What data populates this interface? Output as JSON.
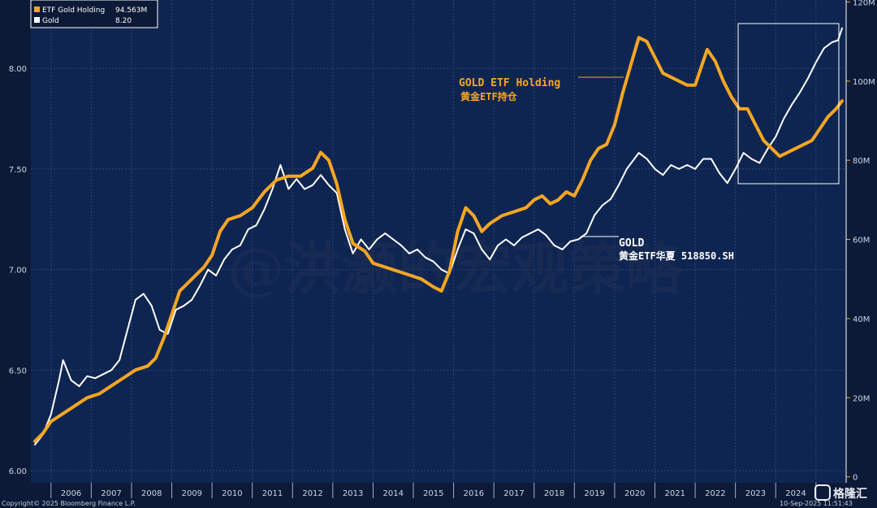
{
  "legend": {
    "items": [
      {
        "label": "ETF Gold Holding",
        "value": "94.563M",
        "color": "#f5a623"
      },
      {
        "label": "Gold",
        "value": "8.20",
        "color": "#ffffff"
      }
    ]
  },
  "annotations": {
    "etf_en": "GOLD ETF Holding",
    "etf_cn": "黄金ETF持仓",
    "gold_en": "GOLD",
    "gold_cn": "黄金ETF华夏 518850.SH"
  },
  "watermark": "@洪灏的宏观策略",
  "footer": {
    "copyright": "Copyright© 2025 Bloomberg Finance L.P.",
    "date": "10-Sep-2025 11:51:43"
  },
  "brand": {
    "name": "格隆汇"
  },
  "chart_data": {
    "type": "line",
    "x_unit": "year",
    "x_ticks": [
      "2006",
      "2007",
      "2008",
      "2009",
      "2010",
      "2011",
      "2012",
      "2013",
      "2014",
      "2015",
      "2016",
      "2017",
      "2018",
      "2019",
      "2020",
      "2021",
      "2022",
      "2023",
      "2024"
    ],
    "xlim": [
      2005.5,
      2025.75
    ],
    "left_axis": {
      "ticks": [
        "6.00",
        "6.50",
        "7.00",
        "7.50",
        "8.00"
      ],
      "ylim": [
        5.94,
        8.34
      ],
      "series": "Gold"
    },
    "right_axis": {
      "ticks": [
        "0",
        "20M",
        "40M",
        "60M",
        "80M",
        "100M",
        "120M"
      ],
      "ylim": [
        -1.5,
        120.5
      ],
      "series": "ETF Gold Holding"
    },
    "series": [
      {
        "name": "ETF Gold Holding",
        "axis": "right",
        "color": "#f5a623",
        "points": [
          [
            2005.6,
            9
          ],
          [
            2005.8,
            11
          ],
          [
            2006.0,
            14
          ],
          [
            2006.3,
            16
          ],
          [
            2006.6,
            18
          ],
          [
            2006.9,
            20
          ],
          [
            2007.2,
            21
          ],
          [
            2007.5,
            23
          ],
          [
            2007.8,
            25
          ],
          [
            2008.1,
            27
          ],
          [
            2008.4,
            28
          ],
          [
            2008.6,
            30
          ],
          [
            2008.8,
            35
          ],
          [
            2009.0,
            41
          ],
          [
            2009.2,
            47
          ],
          [
            2009.5,
            50
          ],
          [
            2009.8,
            53
          ],
          [
            2010.0,
            56
          ],
          [
            2010.2,
            62
          ],
          [
            2010.4,
            65
          ],
          [
            2010.7,
            66
          ],
          [
            2011.0,
            68
          ],
          [
            2011.3,
            72
          ],
          [
            2011.6,
            75
          ],
          [
            2011.9,
            76
          ],
          [
            2012.2,
            76
          ],
          [
            2012.5,
            78
          ],
          [
            2012.7,
            82
          ],
          [
            2012.9,
            80
          ],
          [
            2013.1,
            74
          ],
          [
            2013.3,
            65
          ],
          [
            2013.5,
            59
          ],
          [
            2013.8,
            57
          ],
          [
            2014.0,
            54
          ],
          [
            2014.3,
            53
          ],
          [
            2014.6,
            52
          ],
          [
            2014.9,
            51
          ],
          [
            2015.2,
            50
          ],
          [
            2015.5,
            48
          ],
          [
            2015.7,
            47
          ],
          [
            2015.9,
            52
          ],
          [
            2016.1,
            62
          ],
          [
            2016.3,
            68
          ],
          [
            2016.5,
            66
          ],
          [
            2016.7,
            62
          ],
          [
            2016.9,
            64
          ],
          [
            2017.2,
            66
          ],
          [
            2017.5,
            67
          ],
          [
            2017.8,
            68
          ],
          [
            2018.0,
            70
          ],
          [
            2018.2,
            71
          ],
          [
            2018.4,
            69
          ],
          [
            2018.6,
            70
          ],
          [
            2018.8,
            72
          ],
          [
            2019.0,
            71
          ],
          [
            2019.2,
            75
          ],
          [
            2019.4,
            80
          ],
          [
            2019.6,
            83
          ],
          [
            2019.8,
            84
          ],
          [
            2020.0,
            89
          ],
          [
            2020.2,
            97
          ],
          [
            2020.4,
            104
          ],
          [
            2020.6,
            111
          ],
          [
            2020.8,
            110
          ],
          [
            2021.0,
            106
          ],
          [
            2021.2,
            102
          ],
          [
            2021.4,
            101
          ],
          [
            2021.6,
            100
          ],
          [
            2021.8,
            99
          ],
          [
            2022.0,
            99
          ],
          [
            2022.1,
            102
          ],
          [
            2022.3,
            108
          ],
          [
            2022.5,
            105
          ],
          [
            2022.7,
            100
          ],
          [
            2022.9,
            96
          ],
          [
            2023.1,
            93
          ],
          [
            2023.3,
            93
          ],
          [
            2023.5,
            89
          ],
          [
            2023.7,
            85
          ],
          [
            2023.9,
            83
          ],
          [
            2024.1,
            81
          ],
          [
            2024.3,
            82
          ],
          [
            2024.5,
            83
          ],
          [
            2024.7,
            84
          ],
          [
            2024.9,
            85
          ],
          [
            2025.1,
            88
          ],
          [
            2025.3,
            91
          ],
          [
            2025.5,
            93
          ],
          [
            2025.65,
            95
          ]
        ]
      },
      {
        "name": "Gold",
        "axis": "left",
        "color": "#ffffff",
        "points": [
          [
            2005.6,
            6.13
          ],
          [
            2005.8,
            6.18
          ],
          [
            2006.0,
            6.28
          ],
          [
            2006.2,
            6.45
          ],
          [
            2006.3,
            6.55
          ],
          [
            2006.5,
            6.45
          ],
          [
            2006.7,
            6.42
          ],
          [
            2006.9,
            6.47
          ],
          [
            2007.1,
            6.46
          ],
          [
            2007.3,
            6.48
          ],
          [
            2007.5,
            6.5
          ],
          [
            2007.7,
            6.55
          ],
          [
            2007.9,
            6.7
          ],
          [
            2008.1,
            6.85
          ],
          [
            2008.3,
            6.88
          ],
          [
            2008.5,
            6.82
          ],
          [
            2008.7,
            6.7
          ],
          [
            2008.9,
            6.68
          ],
          [
            2009.1,
            6.8
          ],
          [
            2009.3,
            6.82
          ],
          [
            2009.5,
            6.85
          ],
          [
            2009.7,
            6.92
          ],
          [
            2009.9,
            7.0
          ],
          [
            2010.1,
            6.97
          ],
          [
            2010.3,
            7.05
          ],
          [
            2010.5,
            7.1
          ],
          [
            2010.7,
            7.12
          ],
          [
            2010.9,
            7.2
          ],
          [
            2011.1,
            7.22
          ],
          [
            2011.3,
            7.3
          ],
          [
            2011.5,
            7.4
          ],
          [
            2011.7,
            7.52
          ],
          [
            2011.9,
            7.4
          ],
          [
            2012.1,
            7.45
          ],
          [
            2012.3,
            7.4
          ],
          [
            2012.5,
            7.42
          ],
          [
            2012.7,
            7.47
          ],
          [
            2012.9,
            7.42
          ],
          [
            2013.1,
            7.38
          ],
          [
            2013.3,
            7.2
          ],
          [
            2013.5,
            7.08
          ],
          [
            2013.7,
            7.15
          ],
          [
            2013.9,
            7.1
          ],
          [
            2014.1,
            7.15
          ],
          [
            2014.3,
            7.18
          ],
          [
            2014.5,
            7.15
          ],
          [
            2014.7,
            7.12
          ],
          [
            2014.9,
            7.08
          ],
          [
            2015.1,
            7.1
          ],
          [
            2015.3,
            7.06
          ],
          [
            2015.5,
            7.04
          ],
          [
            2015.7,
            7.0
          ],
          [
            2015.9,
            6.98
          ],
          [
            2016.1,
            7.1
          ],
          [
            2016.3,
            7.2
          ],
          [
            2016.5,
            7.18
          ],
          [
            2016.7,
            7.1
          ],
          [
            2016.9,
            7.05
          ],
          [
            2017.1,
            7.12
          ],
          [
            2017.3,
            7.15
          ],
          [
            2017.5,
            7.12
          ],
          [
            2017.7,
            7.16
          ],
          [
            2017.9,
            7.18
          ],
          [
            2018.1,
            7.2
          ],
          [
            2018.3,
            7.17
          ],
          [
            2018.5,
            7.12
          ],
          [
            2018.7,
            7.1
          ],
          [
            2018.9,
            7.14
          ],
          [
            2019.1,
            7.15
          ],
          [
            2019.3,
            7.18
          ],
          [
            2019.5,
            7.27
          ],
          [
            2019.7,
            7.32
          ],
          [
            2019.9,
            7.35
          ],
          [
            2020.1,
            7.42
          ],
          [
            2020.3,
            7.5
          ],
          [
            2020.6,
            7.58
          ],
          [
            2020.8,
            7.55
          ],
          [
            2021.0,
            7.5
          ],
          [
            2021.2,
            7.47
          ],
          [
            2021.4,
            7.52
          ],
          [
            2021.6,
            7.5
          ],
          [
            2021.8,
            7.52
          ],
          [
            2022.0,
            7.5
          ],
          [
            2022.2,
            7.55
          ],
          [
            2022.4,
            7.55
          ],
          [
            2022.6,
            7.48
          ],
          [
            2022.8,
            7.43
          ],
          [
            2023.0,
            7.5
          ],
          [
            2023.2,
            7.58
          ],
          [
            2023.4,
            7.55
          ],
          [
            2023.6,
            7.53
          ],
          [
            2023.8,
            7.6
          ],
          [
            2024.0,
            7.66
          ],
          [
            2024.2,
            7.75
          ],
          [
            2024.4,
            7.82
          ],
          [
            2024.6,
            7.88
          ],
          [
            2024.8,
            7.95
          ],
          [
            2025.0,
            8.03
          ],
          [
            2025.2,
            8.1
          ],
          [
            2025.4,
            8.13
          ],
          [
            2025.55,
            8.14
          ],
          [
            2025.65,
            8.2
          ]
        ]
      }
    ]
  }
}
